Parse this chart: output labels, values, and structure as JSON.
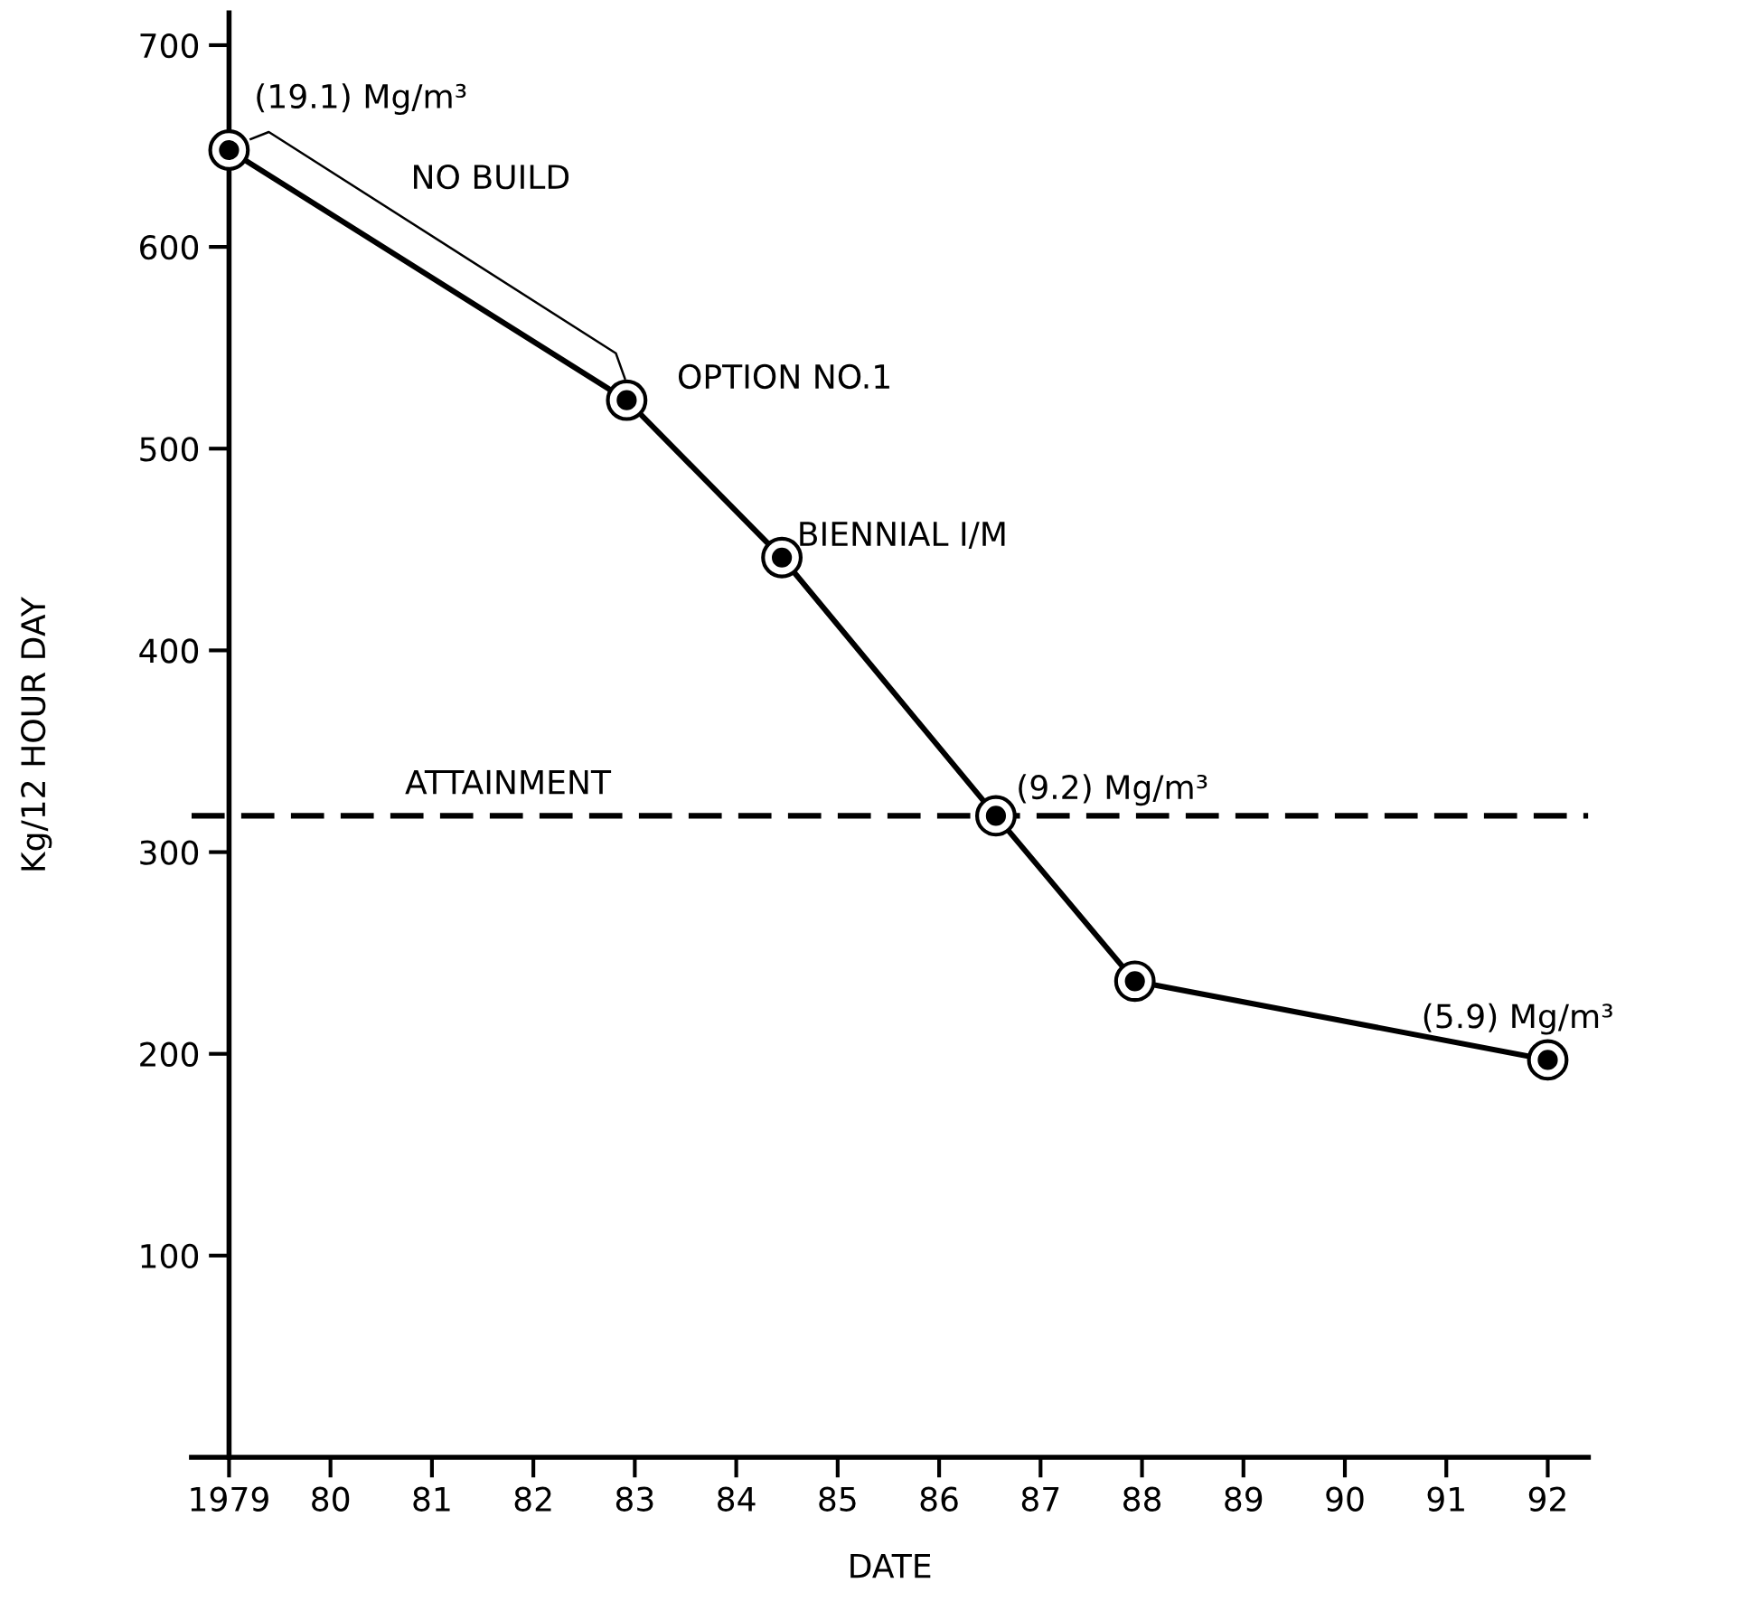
{
  "chart_data": {
    "type": "line",
    "xlabel": "DATE",
    "ylabel": "Kg/12 HOUR DAY",
    "x": [
      1979,
      1982.92,
      1984.45,
      1986.56,
      1987.93,
      1992.0
    ],
    "series": [
      {
        "color": "#000000",
        "values": [
          648,
          524,
          446,
          318,
          236,
          197
        ]
      }
    ],
    "marker": "circle",
    "line_style": "solid",
    "grid": false,
    "xlim": [
      1978.63,
      1992.4
    ],
    "ylim": [
      0,
      716
    ],
    "xticks": [
      {
        "value": 1979,
        "label": "1979"
      },
      {
        "value": 1980,
        "label": "80"
      },
      {
        "value": 1981,
        "label": "81"
      },
      {
        "value": 1982,
        "label": "82"
      },
      {
        "value": 1983,
        "label": "83"
      },
      {
        "value": 1984,
        "label": "84"
      },
      {
        "value": 1985,
        "label": "85"
      },
      {
        "value": 1986,
        "label": "86"
      },
      {
        "value": 1987,
        "label": "87"
      },
      {
        "value": 1988,
        "label": "88"
      },
      {
        "value": 1989,
        "label": "89"
      },
      {
        "value": 1990,
        "label": "90"
      },
      {
        "value": 1991,
        "label": "91"
      },
      {
        "value": 1992,
        "label": "92"
      }
    ],
    "yticks": [
      100,
      200,
      300,
      400,
      500,
      600,
      700
    ],
    "ref_lines": [
      {
        "axis": "y",
        "value": 318,
        "label": "ATTAINMENT",
        "color": "#000000",
        "line_style": "dashed"
      }
    ],
    "annotations": [
      {
        "text": "(19.1) Mg/m³",
        "x": 1979,
        "y": 648
      },
      "NO BUILD",
      {
        "text": "OPTION NO.1",
        "x": 1982.92,
        "y": 524
      },
      {
        "text": "BIENNIAL I/M",
        "x": 1984.45,
        "y": 446
      },
      {
        "text": "(9.2) Mg/m³",
        "x": 1986.56,
        "y": 318
      },
      {
        "text": "(5.9) Mg/m³",
        "x": 1992.0,
        "y": 197
      }
    ]
  }
}
